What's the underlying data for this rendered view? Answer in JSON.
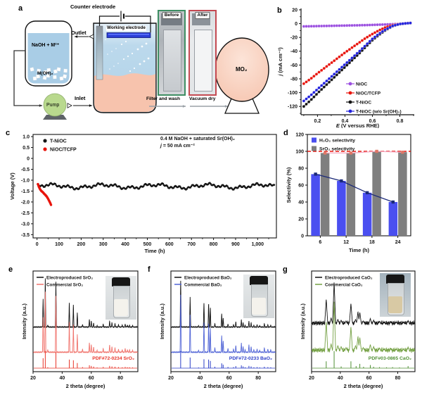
{
  "labels": {
    "a": "a",
    "b": "b",
    "c": "c",
    "d": "d",
    "e": "e",
    "f": "f",
    "g": "g"
  },
  "panel_a": {
    "counter_electrode": "Counter electrode",
    "working_electrode": "Working electrode",
    "outlet": "Outlet",
    "inlet": "Inlet",
    "electrolyte": "NaOH + M²⁺",
    "hydroxide": "M(OH)₂",
    "pump": "Pump",
    "before": "Before",
    "after": "After",
    "filter_wash": "Filter and wash",
    "vacuum_dry": "Vacuum dry",
    "product": "MO₂"
  },
  "chart_data": {
    "b": {
      "type": "line",
      "xlim": [
        0.08,
        0.905
      ],
      "ylim": [
        -132,
        22
      ],
      "xticks": [
        0.2,
        0.4,
        0.6,
        0.8
      ],
      "xtick_labels": [
        "0.2",
        "0.4",
        "0.6",
        "0.8"
      ],
      "xminor": [
        0.1,
        0.3,
        0.5,
        0.7,
        0.9
      ],
      "yticks": [
        20,
        0,
        -20,
        -40,
        -60,
        -80,
        -100,
        -120
      ],
      "ytick_labels": [
        "20",
        "0",
        "-20",
        "-40",
        "-60",
        "-80",
        "-100",
        "-120"
      ],
      "yminor": [
        10,
        -10,
        -30,
        -50,
        -70,
        -90,
        -110,
        -130
      ],
      "xlabel": [
        {
          "t": "E",
          "i": 1
        },
        {
          "t": " (V versus RHE)"
        }
      ],
      "ylabel": [
        {
          "t": "j",
          "i": 1
        },
        {
          "t": " (mA cm⁻²)"
        }
      ],
      "series": [
        {
          "name": "NiOC",
          "color": "#9b4fe0",
          "points": [
            [
              0.1,
              -4
            ],
            [
              0.2,
              -3.6
            ],
            [
              0.3,
              -3.2
            ],
            [
              0.4,
              -2.8
            ],
            [
              0.5,
              -2.4
            ],
            [
              0.6,
              -1.9
            ],
            [
              0.7,
              -1.2
            ],
            [
              0.8,
              -0.3
            ],
            [
              0.88,
              0.8
            ]
          ]
        },
        {
          "name": "NiOC/TCFP",
          "color": "#e8140c",
          "points": [
            [
              0.1,
              -87
            ],
            [
              0.15,
              -80
            ],
            [
              0.2,
              -72
            ],
            [
              0.3,
              -57
            ],
            [
              0.4,
              -42
            ],
            [
              0.5,
              -28
            ],
            [
              0.55,
              -21
            ],
            [
              0.6,
              -15
            ],
            [
              0.65,
              -9.5
            ],
            [
              0.7,
              -5
            ],
            [
              0.75,
              -2
            ],
            [
              0.8,
              -0.3
            ],
            [
              0.85,
              0.7
            ],
            [
              0.88,
              1.2
            ]
          ]
        },
        {
          "name": "T-NiOC",
          "color": "#111111",
          "points": [
            [
              0.1,
              -120
            ],
            [
              0.15,
              -111
            ],
            [
              0.2,
              -101
            ],
            [
              0.3,
              -82
            ],
            [
              0.4,
              -63
            ],
            [
              0.5,
              -44
            ],
            [
              0.55,
              -34
            ],
            [
              0.6,
              -24
            ],
            [
              0.65,
              -16
            ],
            [
              0.7,
              -9
            ],
            [
              0.75,
              -3.5
            ],
            [
              0.8,
              -0.8
            ],
            [
              0.85,
              0.3
            ],
            [
              0.88,
              0.8
            ]
          ]
        },
        {
          "name": "T-NiOC (w/o Sr(OH)₂)",
          "color": "#2020dd",
          "points": [
            [
              0.1,
              -112
            ],
            [
              0.15,
              -104
            ],
            [
              0.2,
              -95
            ],
            [
              0.3,
              -77
            ],
            [
              0.4,
              -59
            ],
            [
              0.5,
              -41
            ],
            [
              0.55,
              -31.5
            ],
            [
              0.6,
              -22
            ],
            [
              0.65,
              -14.5
            ],
            [
              0.7,
              -8
            ],
            [
              0.75,
              -3
            ],
            [
              0.8,
              -0.5
            ],
            [
              0.85,
              0.5
            ],
            [
              0.88,
              1
            ]
          ]
        }
      ]
    },
    "c": {
      "type": "stability",
      "xlim": [
        -18,
        1085
      ],
      "ylim": [
        -3.65,
        1.1
      ],
      "xticks": [
        0,
        100,
        200,
        300,
        400,
        500,
        600,
        700,
        800,
        900,
        1000
      ],
      "xtick_labels": [
        "0",
        "100",
        "200",
        "300",
        "400",
        "500",
        "600",
        "700",
        "800",
        "900",
        "1,000"
      ],
      "xminor": [
        50,
        150,
        250,
        350,
        450,
        550,
        650,
        750,
        850,
        950,
        1050
      ],
      "yticks": [
        1.0,
        0.5,
        0,
        -0.5,
        -1.0,
        -1.5,
        -2.0,
        -2.5,
        -3.0,
        -3.5
      ],
      "ytick_labels": [
        "1.0",
        "0.5",
        "0",
        "-0.5",
        "-1.0",
        "-1.5",
        "-2.0",
        "-2.5",
        "-3.0",
        "-3.5"
      ],
      "xlabel": [
        {
          "t": "Time (h)"
        }
      ],
      "ylabel": [
        {
          "t": "Voltage (V)"
        }
      ],
      "annotation": [
        [
          {
            "t": "0.4 M NaOH + saturated Sr(OH)₂"
          }
        ],
        [
          {
            "t": "j",
            "i": 1
          },
          {
            "t": " = 50 mA cm⁻²"
          }
        ]
      ],
      "series": [
        {
          "name": "T-NiOC",
          "color": "#151515",
          "kind": "noisy",
          "base": -1.28,
          "amp": 0.13,
          "x0": 3,
          "x1": 1078,
          "step": 4
        },
        {
          "name": "NiOC/TCFP",
          "color": "#e8140c",
          "kind": "points",
          "points": [
            [
              4,
              -1.18
            ],
            [
              8,
              -1.3
            ],
            [
              14,
              -1.42
            ],
            [
              20,
              -1.5
            ],
            [
              26,
              -1.55
            ],
            [
              32,
              -1.62
            ],
            [
              38,
              -1.68
            ],
            [
              44,
              -1.75
            ],
            [
              50,
              -1.85
            ],
            [
              55,
              -1.95
            ],
            [
              60,
              -2.05
            ],
            [
              63,
              -2.12
            ],
            [
              65,
              -2.18
            ]
          ]
        }
      ]
    },
    "d": {
      "type": "bar",
      "categories": [
        "6",
        "12",
        "18",
        "24"
      ],
      "ylim": [
        0,
        120
      ],
      "yticks": [
        0,
        20,
        40,
        60,
        80,
        100,
        120
      ],
      "ytick_labels": [
        "0",
        "20",
        "40",
        "60",
        "80",
        "100",
        "120"
      ],
      "xlabel": [
        {
          "t": "Time (h)"
        }
      ],
      "ylabel": [
        {
          "t": "Selectivity (%)"
        }
      ],
      "series": [
        {
          "name": "H₂O₂ selectivity",
          "color": "#4a4ff0",
          "values": [
            73,
            65,
            51,
            40
          ],
          "line_color": "#1b2a78",
          "marker_color": "#1b2a78"
        },
        {
          "name": "SrO₂ selectivity",
          "color": "#7f7f7f",
          "values": [
            98,
            98,
            100,
            99
          ],
          "line_color": "#f2a9c0",
          "marker_color": "#e07868"
        }
      ],
      "refline": {
        "y": 100,
        "color": "#e8140c",
        "dash": "5,3"
      }
    },
    "e": {
      "type": "xrd",
      "xlim": [
        20,
        92
      ],
      "xticks": [
        20,
        40,
        60,
        80
      ],
      "xtick_labels": [
        "20",
        "40",
        "60",
        "80"
      ],
      "xlabel": [
        {
          "t": "2 theta (degree)"
        }
      ],
      "ylabel": [
        {
          "t": "Intensity (a.u.)"
        }
      ],
      "legend": [
        {
          "label": "Electroproduced SrO₂",
          "color": "#111111"
        },
        {
          "label": "Commercial SrO₂",
          "color": "#f0736c"
        }
      ],
      "pdf_label": {
        "text": "PDF#72-0234 SrO₂",
        "color": "#e83429"
      },
      "peaks": [
        [
          26.9,
          0.58
        ],
        [
          28.4,
          1.0
        ],
        [
          30.1,
          0.05
        ],
        [
          35.7,
          0.93
        ],
        [
          44.9,
          0.5
        ],
        [
          47.7,
          0.46
        ],
        [
          50.4,
          0.3
        ],
        [
          54.0,
          0.06
        ],
        [
          58.7,
          0.17
        ],
        [
          60.0,
          0.13
        ],
        [
          61.6,
          0.09
        ],
        [
          64.0,
          0.04
        ],
        [
          68.2,
          0.07
        ],
        [
          72.6,
          0.13
        ],
        [
          74.2,
          0.1
        ],
        [
          76.3,
          0.08
        ],
        [
          78.7,
          0.06
        ],
        [
          81.3,
          0.05
        ],
        [
          83.3,
          0.07
        ],
        [
          84.8,
          0.05
        ],
        [
          86.3,
          0.05
        ],
        [
          88.4,
          0.04
        ]
      ],
      "traces": [
        {
          "color": "#111111",
          "base": 0.56,
          "scale": 0.5,
          "width": 0.4,
          "noise": 0.006,
          "style": "curve"
        },
        {
          "color": "#f0736c",
          "base": 0.81,
          "scale": 0.62,
          "width": 0.4,
          "noise": 0.006,
          "style": "curve"
        },
        {
          "color": "#e83429",
          "base": 0.965,
          "scale": 0.17,
          "style": "stick"
        }
      ]
    },
    "f": {
      "type": "xrd",
      "xlim": [
        20,
        92
      ],
      "xticks": [
        20,
        40,
        60,
        80
      ],
      "xtick_labels": [
        "20",
        "40",
        "60",
        "80"
      ],
      "xlabel": [
        {
          "t": "2 theta (degree)"
        }
      ],
      "ylabel": [
        {
          "t": "Intensity (a.u.)"
        }
      ],
      "legend": [
        {
          "label": "Electroproduced BaO₂",
          "color": "#111111"
        },
        {
          "label": "Commercial BaO₂",
          "color": "#5064d6"
        }
      ],
      "pdf_label": {
        "text": "PDF#72-0233 BaO₂",
        "color": "#2a3dc8"
      },
      "peaks": [
        [
          26.7,
          1.0
        ],
        [
          33.2,
          0.62
        ],
        [
          39.0,
          0.04
        ],
        [
          42.7,
          0.52
        ],
        [
          45.9,
          0.5
        ],
        [
          47.1,
          0.42
        ],
        [
          50.2,
          0.08
        ],
        [
          54.9,
          0.28
        ],
        [
          55.9,
          0.2
        ],
        [
          59.2,
          0.07
        ],
        [
          63.0,
          0.06
        ],
        [
          64.6,
          0.12
        ],
        [
          68.4,
          0.16
        ],
        [
          69.6,
          0.1
        ],
        [
          71.0,
          0.05
        ],
        [
          73.6,
          0.13
        ],
        [
          75.1,
          0.1
        ],
        [
          77.0,
          0.05
        ],
        [
          79.2,
          0.06
        ],
        [
          81.0,
          0.04
        ],
        [
          84.2,
          0.08
        ],
        [
          86.6,
          0.06
        ],
        [
          88.6,
          0.05
        ]
      ],
      "traces": [
        {
          "color": "#111111",
          "base": 0.56,
          "scale": 0.5,
          "width": 0.4,
          "noise": 0.006,
          "style": "curve"
        },
        {
          "color": "#5064d6",
          "base": 0.81,
          "scale": 0.62,
          "width": 0.4,
          "noise": 0.006,
          "style": "curve"
        },
        {
          "color": "#2a3dc8",
          "base": 0.965,
          "scale": 0.17,
          "style": "stick"
        }
      ]
    },
    "g": {
      "type": "xrd",
      "xlim": [
        20,
        92
      ],
      "xticks": [
        20,
        40,
        60,
        80
      ],
      "xtick_labels": [
        "20",
        "40",
        "60",
        "80"
      ],
      "xlabel": [
        {
          "t": "2 theta (degree)"
        }
      ],
      "ylabel": [
        {
          "t": "Intensity (a.u.)"
        }
      ],
      "legend": [
        {
          "label": "Electroproduced CaO₂",
          "color": "#111111"
        },
        {
          "label": "Commercial CaO₂",
          "color": "#74a043"
        }
      ],
      "pdf_label": {
        "text": "PDF#03-0865 CaO₂",
        "color": "#4f8f33"
      },
      "peaks": [
        [
          30.2,
          0.6
        ],
        [
          33.6,
          0.15
        ],
        [
          35.7,
          1.0
        ],
        [
          38.3,
          0.12
        ],
        [
          40.6,
          0.1
        ],
        [
          44.0,
          0.08
        ],
        [
          47.4,
          0.5
        ],
        [
          50.6,
          0.12
        ],
        [
          52.3,
          0.3
        ],
        [
          53.6,
          0.28
        ],
        [
          56.0,
          0.08
        ],
        [
          60.9,
          0.14
        ],
        [
          63.2,
          0.1
        ],
        [
          67.3,
          0.07
        ],
        [
          70.5,
          0.05
        ],
        [
          75.2,
          0.06
        ],
        [
          79.0,
          0.05
        ],
        [
          84.0,
          0.05
        ],
        [
          87.2,
          0.09
        ]
      ],
      "pdf_peaks": [
        [
          30.2,
          0.4
        ],
        [
          35.7,
          1.0
        ],
        [
          40.6,
          0.1
        ],
        [
          47.4,
          0.4
        ],
        [
          51.0,
          0.12
        ],
        [
          53.6,
          0.25
        ],
        [
          56.2,
          0.08
        ],
        [
          60.9,
          0.18
        ],
        [
          63.2,
          0.08
        ],
        [
          67.3,
          0.06
        ],
        [
          72.2,
          0.05
        ],
        [
          76.4,
          0.06
        ],
        [
          81.2,
          0.04
        ],
        [
          87.2,
          0.12
        ]
      ],
      "traces": [
        {
          "color": "#111111",
          "base": 0.53,
          "scale": 0.42,
          "width": 1.1,
          "noise": 0.02,
          "style": "curve"
        },
        {
          "color": "#74a043",
          "base": 0.8,
          "scale": 0.5,
          "width": 1.1,
          "noise": 0.022,
          "style": "curve"
        },
        {
          "color": "#4f8f33",
          "base": 0.965,
          "scale": 0.17,
          "style": "stick",
          "use_pdf": true
        }
      ]
    }
  }
}
